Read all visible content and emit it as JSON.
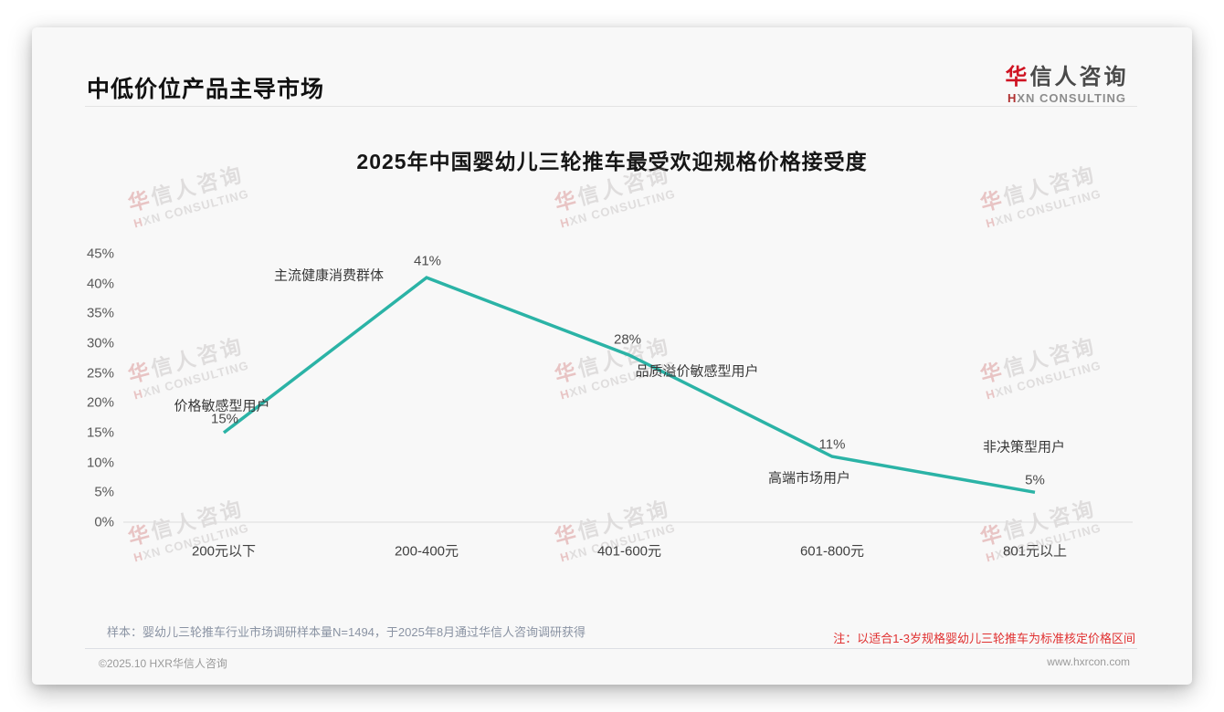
{
  "header": {
    "title": "中低价位产品主导市场"
  },
  "logo": {
    "cn_first": "华",
    "cn_rest": "信人咨询",
    "en_first": "H",
    "en_rest": "XN CONSULTING"
  },
  "watermark": {
    "cn_first": "华",
    "cn_rest": "信人咨询",
    "en_first": "H",
    "en_rest": "XN CONSULTING"
  },
  "chart_data": {
    "type": "line",
    "title": "2025年中国婴幼儿三轮推车最受欢迎规格价格接受度",
    "categories": [
      "200元以下",
      "200-400元",
      "401-600元",
      "601-800元",
      "801元以上"
    ],
    "values": [
      15,
      41,
      28,
      11,
      5
    ],
    "point_labels": [
      "15%",
      "41%",
      "28%",
      "11%",
      "5%"
    ],
    "point_annotations": [
      "价格敏感型用户",
      "主流健康消费群体",
      "品质溢价敏感型用户",
      "高端市场用户",
      "非决策型用户"
    ],
    "yticks": [
      "45%",
      "40%",
      "35%",
      "30%",
      "25%",
      "20%",
      "15%",
      "10%",
      "5%",
      "0%"
    ],
    "ylim": [
      0,
      45
    ],
    "ytick_step": 5,
    "line_color": "#2bb3a6",
    "baseline_color": "#dcdcdc",
    "grid": "baseline-only",
    "legend": "none",
    "xlabel": "",
    "ylabel": ""
  },
  "footnotes": {
    "sample": "样本：婴幼儿三轮推车行业市场调研样本量N=1494，于2025年8月通过华信人咨询调研获得",
    "note": "注：以适合1-3岁规格婴幼儿三轮推车为标准核定价格区间"
  },
  "footer": {
    "copyright": "©2025.10 HXR华信人咨询",
    "website": "www.hxrcon.com"
  }
}
